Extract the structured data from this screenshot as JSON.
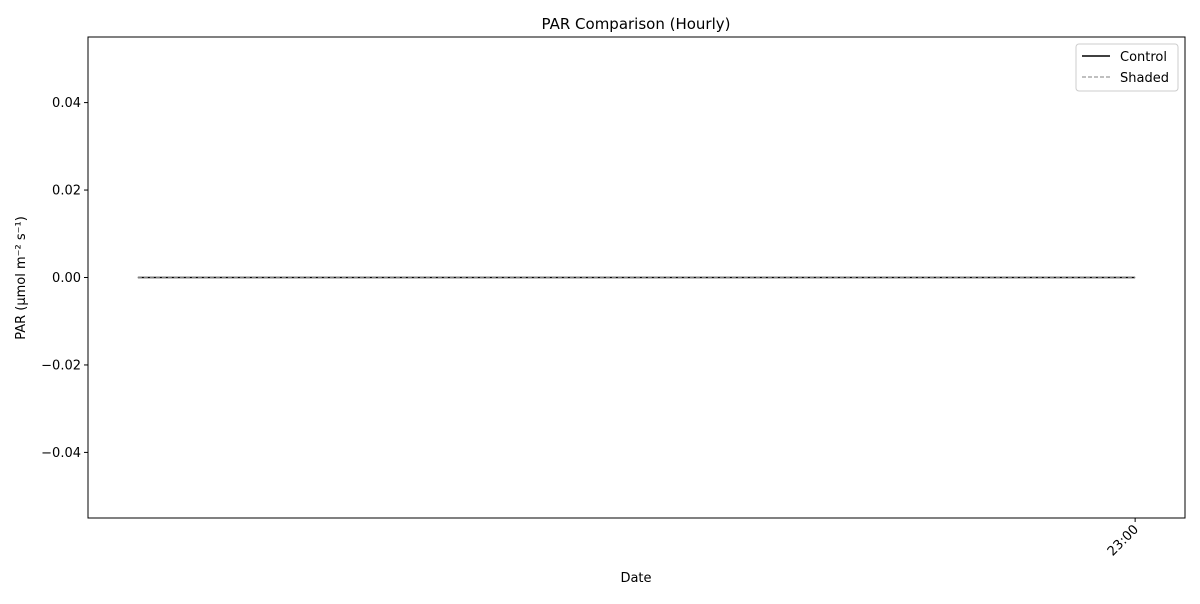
{
  "chart_data": {
    "type": "line",
    "title": "PAR Comparison (Hourly)",
    "xlabel": "Date",
    "ylabel": "PAR (μmol m⁻² s⁻¹)",
    "ylim": [
      -0.055,
      0.055
    ],
    "yticks": [
      -0.04,
      -0.02,
      0.0,
      0.02,
      0.04
    ],
    "ytick_labels": [
      "−0.04",
      "−0.02",
      "0.00",
      "0.02",
      "0.04"
    ],
    "xticks": [
      1.0
    ],
    "xtick_labels": [
      "23:00"
    ],
    "xlim": [
      -0.05,
      1.05
    ],
    "grid": false,
    "legend_position": "top-right",
    "series": [
      {
        "name": "Control",
        "x": [
          0.0,
          1.0
        ],
        "values": [
          0.0,
          0.0
        ],
        "color": "#000000",
        "style": "solid"
      },
      {
        "name": "Shaded",
        "x": [
          0.0,
          1.0
        ],
        "values": [
          0.0,
          0.0
        ],
        "color": "#808080",
        "style": "dashed"
      }
    ]
  }
}
